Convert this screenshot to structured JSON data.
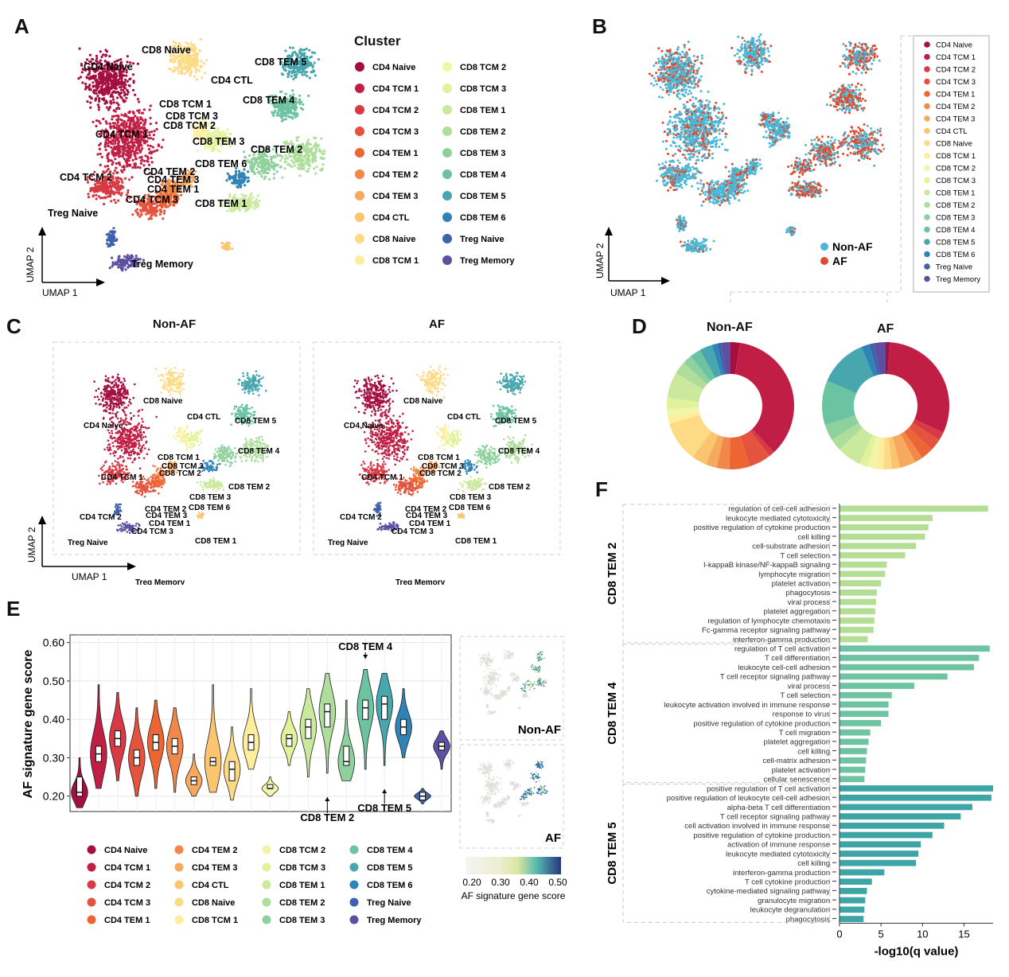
{
  "panels": {
    "A": "A",
    "B": "B",
    "C": "C",
    "D": "D",
    "E": "E",
    "F": "F"
  },
  "clusters": [
    {
      "name": "CD4 Naive",
      "color": "#a50f40"
    },
    {
      "name": "CD4 TCM 1",
      "color": "#c11e45"
    },
    {
      "name": "CD4 TCM 2",
      "color": "#d73a44"
    },
    {
      "name": "CD4 TCM 3",
      "color": "#e4533e"
    },
    {
      "name": "CD4 TEM 1",
      "color": "#ee6534"
    },
    {
      "name": "CD4 TEM 2",
      "color": "#f2874a"
    },
    {
      "name": "CD4 TEM 3",
      "color": "#f7a95e"
    },
    {
      "name": "CD4 CTL",
      "color": "#fbc46e"
    },
    {
      "name": "CD8 Naive",
      "color": "#fdda84"
    },
    {
      "name": "CD8 TCM 1",
      "color": "#fdee9e"
    },
    {
      "name": "CD8 TCM 2",
      "color": "#f1f6a6"
    },
    {
      "name": "CD8 TCM 3",
      "color": "#e2f29a"
    },
    {
      "name": "CD8 TEM 1",
      "color": "#cbe99c"
    },
    {
      "name": "CD8 TEM 2",
      "color": "#afdd9b"
    },
    {
      "name": "CD8 TEM 3",
      "color": "#8fd19c"
    },
    {
      "name": "CD8 TEM 4",
      "color": "#6cc3a1"
    },
    {
      "name": "CD8 TEM 5",
      "color": "#47a6ae"
    },
    {
      "name": "CD8 TEM 6",
      "color": "#2e83b7"
    },
    {
      "name": "Treg Naive",
      "color": "#3f62ad"
    },
    {
      "name": "Treg Memory",
      "color": "#5e4fa2"
    }
  ],
  "panel_a": {
    "legend_title": "Cluster",
    "axis_x": "UMAP 1",
    "axis_y": "UMAP 2"
  },
  "panel_b": {
    "groups": [
      {
        "name": "Non-AF",
        "color": "#4ab7d6"
      },
      {
        "name": "AF",
        "color": "#e04b2f"
      }
    ],
    "axis_x": "UMAP 1",
    "axis_y": "UMAP 2"
  },
  "panel_c": {
    "titles": [
      "Non-AF",
      "AF"
    ],
    "axis_x": "UMAP 1",
    "axis_y": "UMAP 2"
  },
  "panel_d": {
    "titles": [
      "Non-AF",
      "AF"
    ]
  },
  "chart_data": [
    {
      "type": "violin",
      "panel": "E",
      "ylabel": "AF signature gene score",
      "ylim": [
        0.16,
        0.62
      ],
      "yticks": [
        "0.20",
        "0.30",
        "0.40",
        "0.50",
        "0.60"
      ],
      "categories": [
        "CD4 Naive",
        "CD4 TCM 1",
        "CD4 TCM 2",
        "CD4 TCM 3",
        "CD4 TEM 1",
        "CD4 TEM 2",
        "CD4 TEM 3",
        "CD4 CTL",
        "CD8 Naive",
        "CD8 TCM 1",
        "CD8 TCM 2",
        "CD8 TCM 3",
        "CD8 TEM 1",
        "CD8 TEM 2",
        "CD8 TEM 3",
        "CD8 TEM 4",
        "CD8 TEM 5",
        "CD8 TEM 6",
        "Treg Naive",
        "Treg Memory"
      ],
      "median": [
        0.21,
        0.31,
        0.35,
        0.3,
        0.34,
        0.33,
        0.24,
        0.29,
        0.27,
        0.34,
        0.22,
        0.35,
        0.38,
        0.42,
        0.29,
        0.43,
        0.44,
        0.38,
        0.2,
        0.33
      ],
      "q1": [
        0.2,
        0.29,
        0.33,
        0.28,
        0.32,
        0.31,
        0.23,
        0.28,
        0.24,
        0.32,
        0.22,
        0.33,
        0.35,
        0.38,
        0.28,
        0.4,
        0.4,
        0.36,
        0.19,
        0.32
      ],
      "q3": [
        0.25,
        0.33,
        0.37,
        0.32,
        0.36,
        0.35,
        0.25,
        0.3,
        0.29,
        0.36,
        0.23,
        0.36,
        0.4,
        0.44,
        0.33,
        0.45,
        0.46,
        0.4,
        0.21,
        0.34
      ],
      "ymin": [
        0.17,
        0.22,
        0.24,
        0.2,
        0.22,
        0.21,
        0.2,
        0.21,
        0.19,
        0.27,
        0.2,
        0.28,
        0.25,
        0.26,
        0.24,
        0.27,
        0.28,
        0.3,
        0.18,
        0.27
      ],
      "ymax": [
        0.3,
        0.49,
        0.47,
        0.43,
        0.45,
        0.43,
        0.31,
        0.49,
        0.38,
        0.48,
        0.25,
        0.42,
        0.48,
        0.52,
        0.45,
        0.53,
        0.52,
        0.48,
        0.22,
        0.37
      ],
      "annotations": [
        "CD8 TEM 4",
        "CD8 TEM 2",
        "CD8 TEM 5"
      ],
      "inset_labels": [
        "Non-AF",
        "AF"
      ],
      "colorbar_ticks": [
        "0.20",
        "0.30",
        "0.40",
        "0.50"
      ],
      "colorbar_title": "AF signature gene score"
    },
    {
      "type": "bar",
      "panel": "F",
      "xlabel": "-log10(q value)",
      "xlim": [
        0,
        18.5
      ],
      "xticks": [
        "0",
        "5",
        "10",
        "15"
      ],
      "groups": [
        {
          "name": "CD8 TEM 2",
          "color": "#b4de94",
          "terms": [
            "regulation of cell-cell adhesion",
            "leukocyte mediated cytotoxicity",
            "positive regulation of cytokine production",
            "cell killing",
            "cell-substrate adhesion",
            "T cell selection",
            "I-kappaB kinase/NF-kappaB signaling",
            "lymphocyte migration",
            "platelet activation",
            "phagocytosis",
            "viral process",
            "platelet aggregation",
            "regulation of lymphocyte chemotaxis",
            "Fc-gamma receptor signaling pathway",
            "interferon-gamma production"
          ],
          "values": [
            17.9,
            11.2,
            10.7,
            10.3,
            9.2,
            7.9,
            5.7,
            5.5,
            5.0,
            4.5,
            4.4,
            4.3,
            4.2,
            4.1,
            3.4
          ]
        },
        {
          "name": "CD8 TEM 4",
          "color": "#6ec4a2",
          "terms": [
            "regulation of T cell activation",
            "T cell differentiation",
            "leukocyte cell-cell adhesion",
            "T cell receptor signaling pathway",
            "viral process",
            "T cell selection",
            "leukocyte activation involved in immune response",
            "response to virus",
            "positive regulation of cytokine production",
            "T cell migration",
            "platelet aggregation",
            "cell killing",
            "cell-matrix adhesion",
            "platelet activation",
            "cellular senescence"
          ],
          "values": [
            18.1,
            16.8,
            16.2,
            13.0,
            9.0,
            6.3,
            5.9,
            5.9,
            5.0,
            3.7,
            3.5,
            3.3,
            3.2,
            3.1,
            3.0
          ]
        },
        {
          "name": "CD8 TEM 5",
          "color": "#3ea5a6",
          "terms": [
            "positive regulation of T cell activation",
            "positive regulation of leukocyte cell-cell adhesion",
            "alpha-beta T cell differentiation",
            "T cell receptor signaling pathway",
            "cell activation involved in immune response",
            "positive regulation of cytokine production",
            "activation of immune response",
            "leukocyte mediated cytotoxicity",
            "cell killing",
            "interferon-gamma production",
            "T cell cytokine production",
            "cytokine-mediated signaling pathway",
            "granulocyte migration",
            "leukocyte degranulation",
            "phagocytosis"
          ],
          "values": [
            18.5,
            18.3,
            16.0,
            14.6,
            12.6,
            11.2,
            9.8,
            9.5,
            9.2,
            5.4,
            3.9,
            3.3,
            3.1,
            3.0,
            2.9
          ]
        }
      ]
    }
  ]
}
